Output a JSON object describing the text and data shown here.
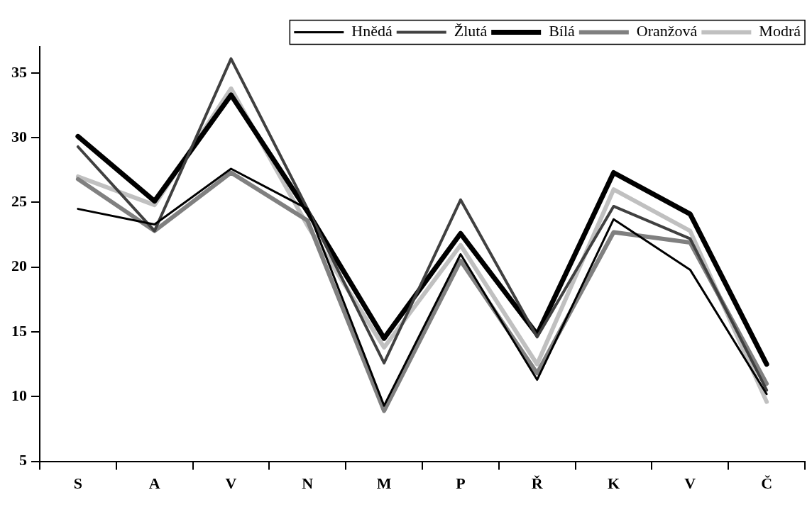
{
  "chart_data": {
    "type": "line",
    "categories": [
      "S",
      "A",
      "V",
      "N",
      "M",
      "P",
      "Ř",
      "K",
      "V",
      "Č"
    ],
    "series": [
      {
        "name": "Hnědá",
        "color": "#000000",
        "values": [
          24.5,
          23.3,
          27.6,
          24.5,
          9.3,
          21,
          11.3,
          23.7,
          19.8,
          10.2
        ]
      },
      {
        "name": "Žlutá",
        "color": "#404040",
        "values": [
          29.3,
          22.8,
          36.1,
          24.5,
          12.6,
          25.2,
          14.6,
          24.7,
          22.2,
          10.5
        ]
      },
      {
        "name": "Bílá",
        "color": "#000000",
        "values": [
          30.1,
          25.1,
          33.3,
          24.3,
          14.5,
          22.6,
          14.8,
          27.3,
          24.1,
          12.5
        ]
      },
      {
        "name": "Oranžová",
        "color": "#808080",
        "values": [
          26.8,
          22.8,
          27.3,
          23.6,
          8.9,
          20.5,
          11.8,
          22.7,
          21.9,
          11.0
        ]
      },
      {
        "name": "Modrá",
        "color": "#c0c0c0",
        "values": [
          27,
          24.8,
          33.8,
          23.2,
          13.8,
          21.7,
          12.5,
          26.0,
          22.8,
          9.6
        ]
      }
    ],
    "ylim": [
      5,
      37
    ],
    "yticks": [
      5,
      10,
      15,
      20,
      25,
      30,
      35
    ],
    "grid": false,
    "legend": "top right",
    "marker": "none",
    "line_style": "solid"
  }
}
